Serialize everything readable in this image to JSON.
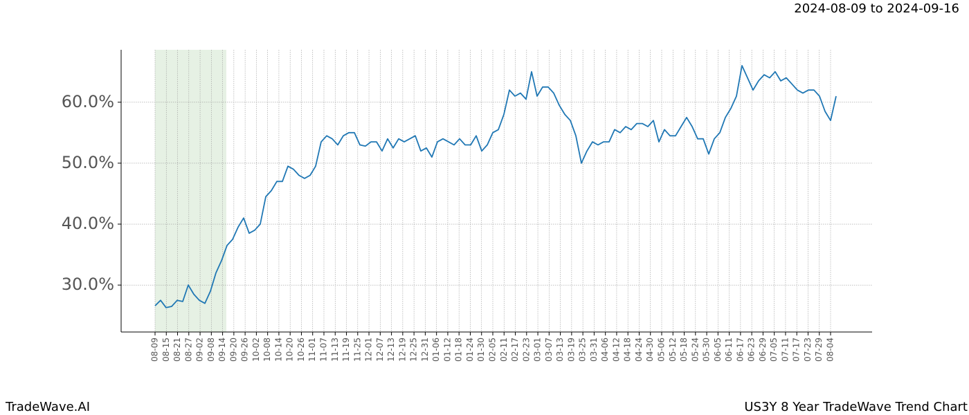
{
  "chart_data": {
    "type": "line",
    "date_range": "2024-08-09 to 2024-09-16",
    "brand": "TradeWave.AI",
    "title": "US3Y 8 Year TradeWave Trend Chart",
    "xticks": [
      "08-09",
      "08-15",
      "08-21",
      "08-27",
      "09-02",
      "09-08",
      "09-14",
      "09-20",
      "09-26",
      "10-02",
      "10-08",
      "10-14",
      "10-20",
      "10-26",
      "11-01",
      "11-07",
      "11-13",
      "11-19",
      "11-25",
      "12-01",
      "12-07",
      "12-13",
      "12-19",
      "12-25",
      "12-31",
      "01-06",
      "01-12",
      "01-18",
      "01-24",
      "01-30",
      "02-05",
      "02-11",
      "02-17",
      "02-23",
      "03-01",
      "03-07",
      "03-13",
      "03-19",
      "03-25",
      "03-31",
      "04-06",
      "04-12",
      "04-18",
      "04-24",
      "04-30",
      "05-06",
      "05-12",
      "05-18",
      "05-24",
      "05-30",
      "06-05",
      "06-11",
      "06-17",
      "06-23",
      "06-29",
      "07-05",
      "07-11",
      "07-17",
      "07-23",
      "07-29",
      "08-04"
    ],
    "ylim": [
      22.3,
      68.6
    ],
    "yticks": [
      {
        "value": 30,
        "label": "30.0%"
      },
      {
        "value": 40,
        "label": "40.0%"
      },
      {
        "value": 50,
        "label": "50.0%"
      },
      {
        "value": 60,
        "label": "60.0%"
      }
    ],
    "grid": true,
    "series": [
      {
        "color": "#1f77b4",
        "values": [
          26.6,
          27.5,
          26.3,
          26.5,
          27.5,
          27.3,
          30.0,
          28.5,
          27.5,
          27.0,
          29.0,
          32.0,
          34.0,
          36.5,
          37.5,
          39.5,
          41.0,
          38.5,
          39.0,
          40.0,
          44.5,
          45.5,
          47.0,
          47.0,
          49.5,
          49.0,
          48.0,
          47.5,
          48.0,
          49.5,
          53.5,
          54.5,
          54.0,
          53.0,
          54.5,
          55.0,
          55.0,
          53.0,
          52.8,
          53.5,
          53.5,
          52.0,
          54.0,
          52.5,
          54.0,
          53.5,
          54.0,
          54.5,
          52.0,
          52.5,
          51.0,
          53.5,
          54.0,
          53.5,
          53.0,
          54.0,
          53.0,
          53.0,
          54.5,
          52.0,
          53.0,
          55.0,
          55.5,
          58.0,
          62.0,
          61.0,
          61.5,
          60.5,
          65.0,
          61.0,
          62.5,
          62.5,
          61.5,
          59.5,
          58.0,
          57.0,
          54.5,
          50.0,
          52.0,
          53.5,
          53.0,
          53.5,
          53.5,
          55.5,
          55.0,
          56.0,
          55.5,
          56.5,
          56.5,
          56.0,
          57.0,
          53.5,
          55.5,
          54.5,
          54.5,
          56.0,
          57.5,
          56.0,
          54.0,
          54.0,
          51.5,
          54.0,
          55.0,
          57.5,
          59.0,
          61.0,
          66.0,
          64.0,
          62.0,
          63.5,
          64.5,
          64.0,
          65.0,
          63.5,
          64.0,
          63.0,
          62.0,
          61.5,
          62.0,
          62.0,
          61.0,
          58.5,
          57.0,
          61.0
        ]
      }
    ]
  }
}
